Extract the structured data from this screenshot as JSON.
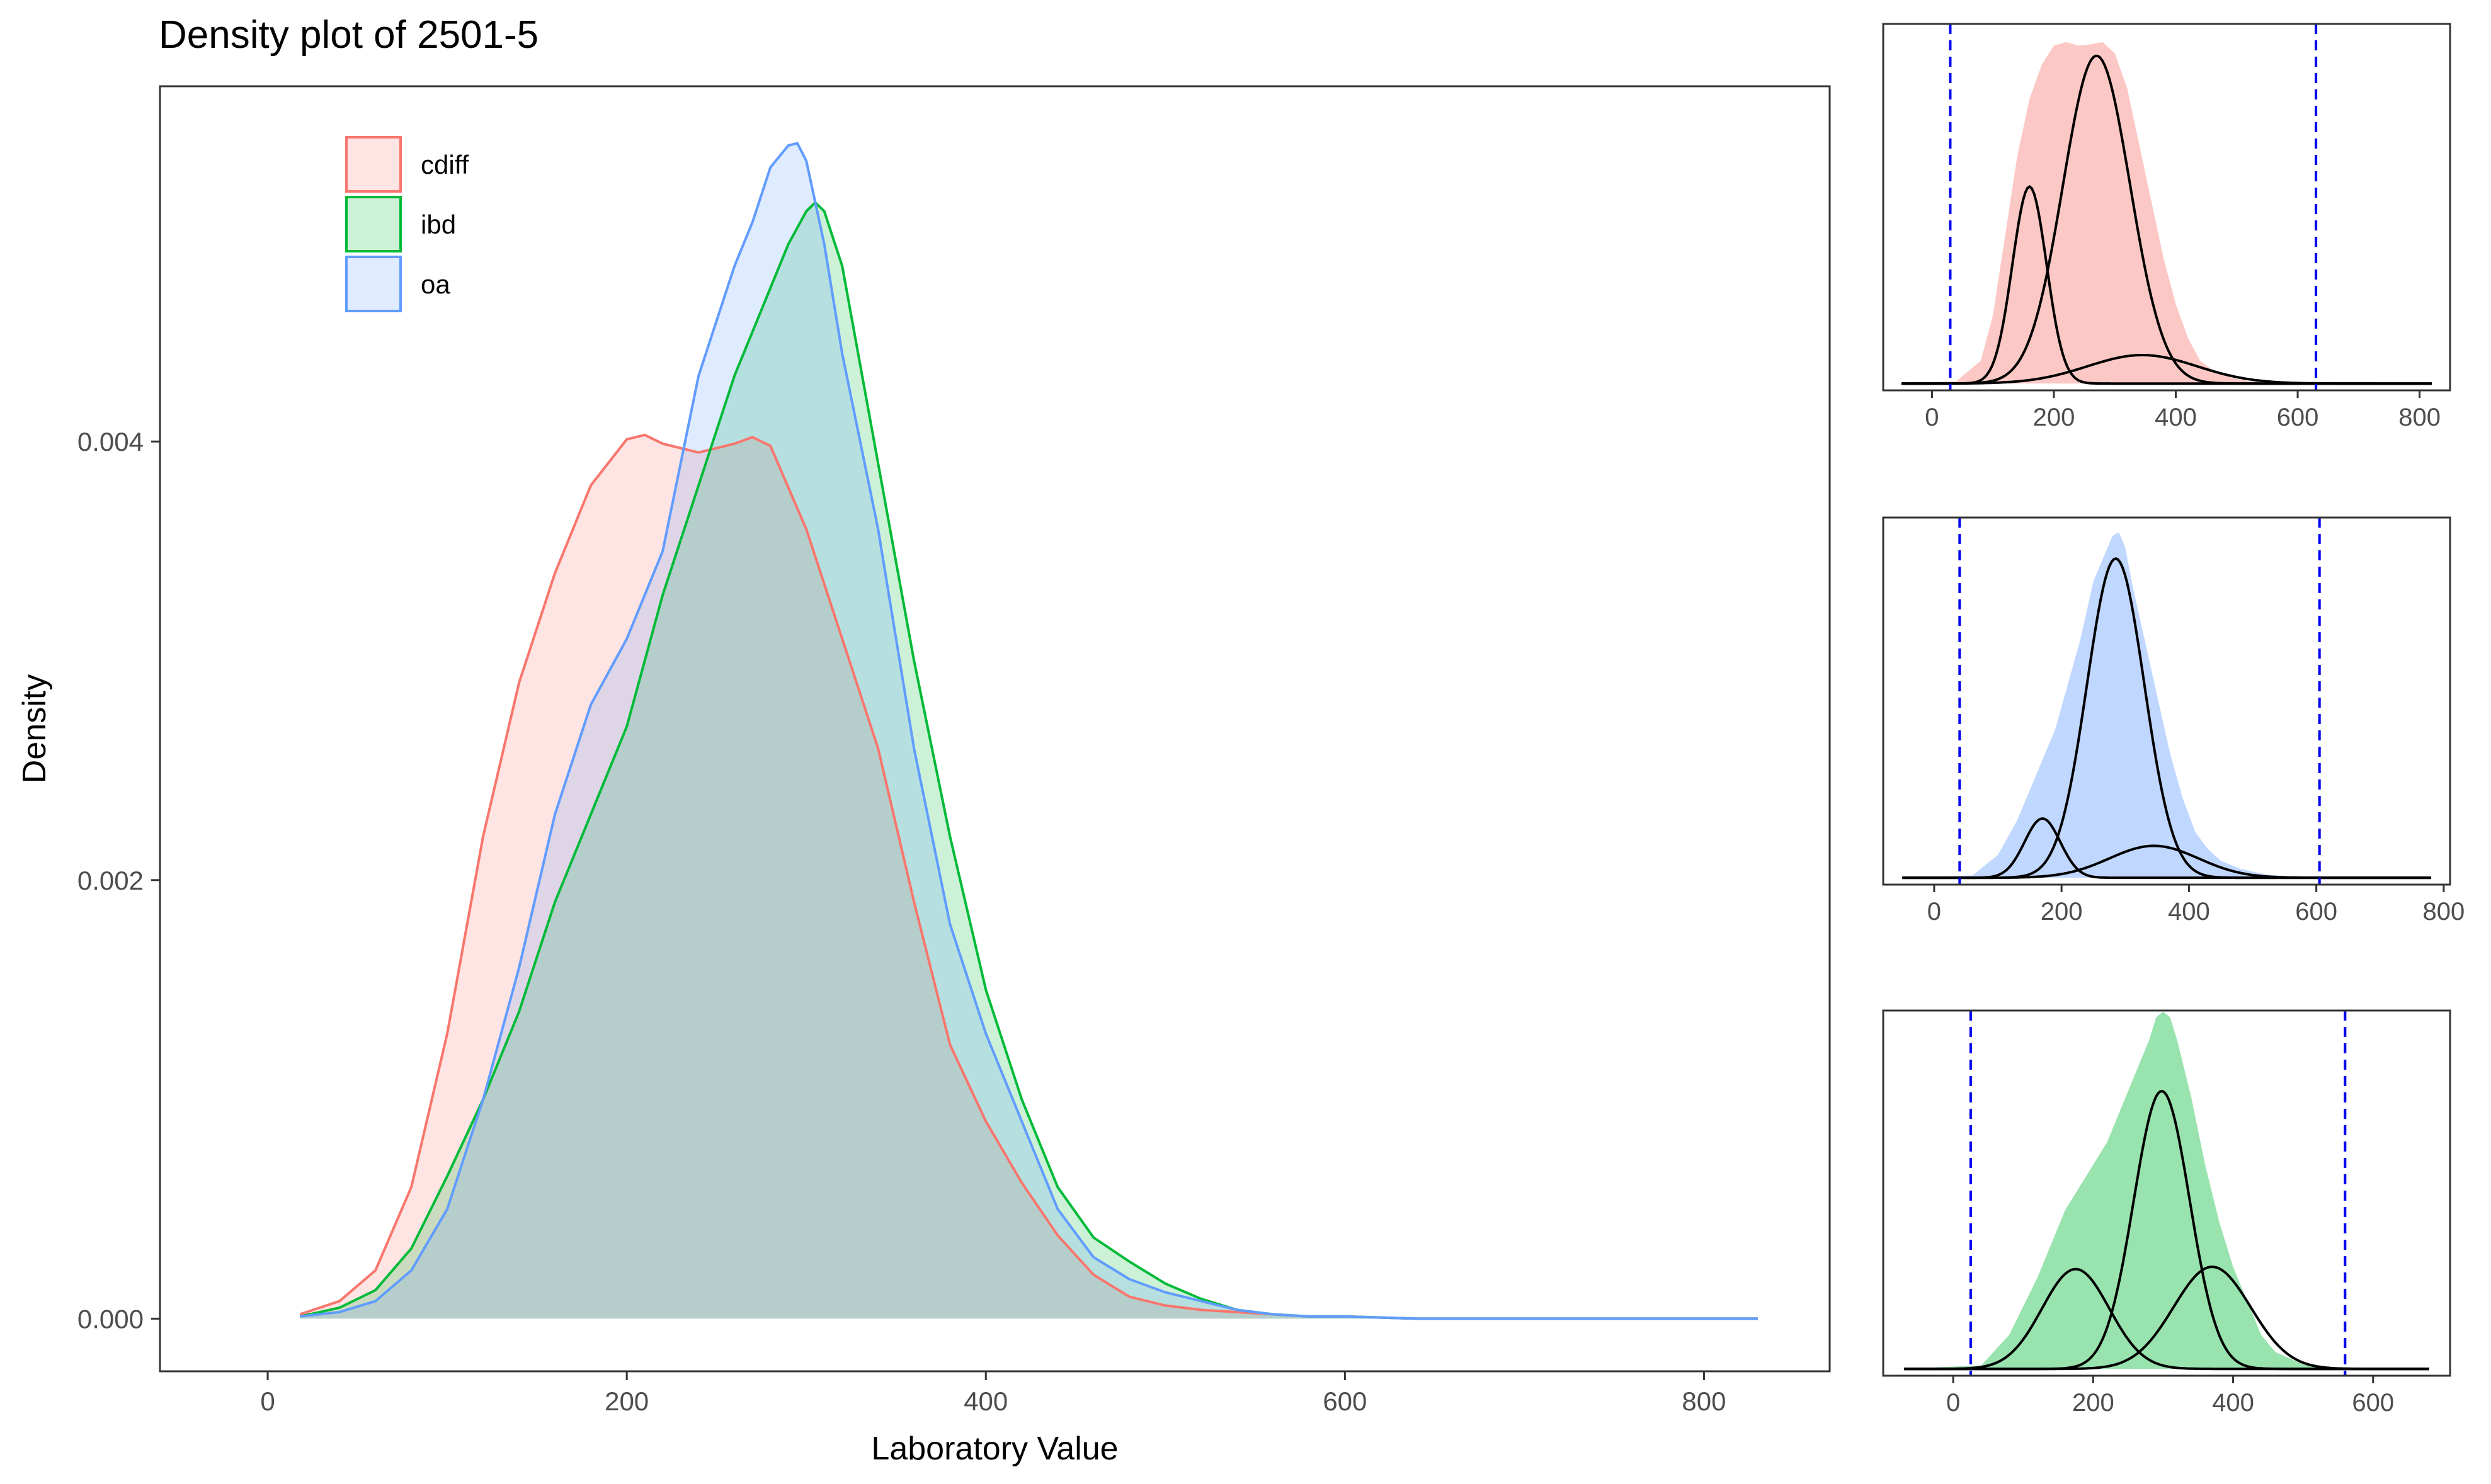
{
  "title": "Density plot of 2501-5",
  "main_chart": {
    "type": "area",
    "xlabel": "Laboratory Value",
    "ylabel": "Density",
    "xlim": [
      -60,
      870
    ],
    "ylim": [
      -0.00024,
      0.00562
    ],
    "x_ticks": [
      0,
      200,
      400,
      600,
      800
    ],
    "y_ticks": [
      0.0,
      0.002,
      0.004
    ],
    "y_tick_labels": [
      "0.000",
      "0.002",
      "0.004"
    ],
    "grid": false,
    "legend_position": "top-left",
    "series": [
      {
        "name": "cdiff",
        "color": "#F8766D",
        "x": [
          18,
          40,
          60,
          80,
          100,
          120,
          140,
          160,
          180,
          200,
          210,
          220,
          240,
          260,
          270,
          280,
          300,
          320,
          340,
          360,
          380,
          400,
          420,
          440,
          460,
          480,
          500,
          520,
          540,
          560,
          580,
          600,
          640,
          700,
          830
        ],
        "y": [
          2e-05,
          8e-05,
          0.00022,
          0.0006,
          0.0013,
          0.0022,
          0.0029,
          0.0034,
          0.0038,
          0.00401,
          0.00403,
          0.00399,
          0.00395,
          0.00399,
          0.00402,
          0.00398,
          0.0036,
          0.0031,
          0.0026,
          0.0019,
          0.00125,
          0.0009,
          0.00062,
          0.00038,
          0.0002,
          0.0001,
          6e-05,
          4e-05,
          3e-05,
          2e-05,
          1e-05,
          1e-05,
          0.0,
          0.0,
          0.0
        ]
      },
      {
        "name": "ibd",
        "color": "#00BA38",
        "x": [
          18,
          40,
          60,
          80,
          100,
          120,
          140,
          160,
          180,
          200,
          220,
          240,
          260,
          280,
          290,
          300,
          305,
          310,
          320,
          340,
          360,
          380,
          400,
          420,
          440,
          460,
          480,
          500,
          520,
          540,
          560,
          580,
          600,
          640,
          700,
          830
        ],
        "y": [
          1e-05,
          5e-05,
          0.00013,
          0.00032,
          0.00065,
          0.001,
          0.0014,
          0.0019,
          0.0023,
          0.0027,
          0.0033,
          0.0038,
          0.0043,
          0.0047,
          0.0049,
          0.00505,
          0.00509,
          0.00505,
          0.0048,
          0.0039,
          0.003,
          0.0022,
          0.0015,
          0.001,
          0.0006,
          0.00037,
          0.00026,
          0.00016,
          9e-05,
          4e-05,
          2e-05,
          1e-05,
          1e-05,
          0.0,
          0.0,
          0.0
        ]
      },
      {
        "name": "oa",
        "color": "#619CFF",
        "x": [
          18,
          40,
          60,
          80,
          100,
          120,
          140,
          160,
          180,
          200,
          220,
          240,
          260,
          270,
          280,
          290,
          295,
          300,
          310,
          320,
          340,
          360,
          380,
          400,
          420,
          440,
          460,
          480,
          500,
          520,
          540,
          560,
          580,
          600,
          640,
          700,
          830
        ],
        "y": [
          1e-05,
          3e-05,
          8e-05,
          0.00022,
          0.0005,
          0.001,
          0.0016,
          0.0023,
          0.0028,
          0.0031,
          0.0035,
          0.0043,
          0.0048,
          0.005,
          0.00525,
          0.00535,
          0.00536,
          0.00528,
          0.0049,
          0.0044,
          0.0036,
          0.0026,
          0.0018,
          0.0013,
          0.0009,
          0.0005,
          0.00028,
          0.00018,
          0.00012,
          8e-05,
          4e-05,
          2e-05,
          1e-05,
          1e-05,
          0.0,
          0.0,
          0.0
        ]
      }
    ]
  },
  "panels": [
    {
      "name": "cdiff-components",
      "fill": "#F8766D",
      "xlim": [
        -80,
        850
      ],
      "ylim": [
        -6e-05,
        0.00316
      ],
      "x_ticks": [
        0,
        200,
        400,
        600,
        800
      ],
      "cutoffs": [
        30,
        630
      ],
      "density": {
        "x": [
          -60,
          40,
          80,
          100,
          120,
          140,
          160,
          180,
          200,
          220,
          240,
          260,
          280,
          300,
          320,
          340,
          360,
          380,
          400,
          420,
          440,
          460,
          480,
          500,
          520,
          560,
          620,
          700,
          820
        ],
        "y": [
          0,
          2e-05,
          0.0002,
          0.0006,
          0.0013,
          0.002,
          0.0025,
          0.0028,
          0.00297,
          0.003,
          0.00297,
          0.00298,
          0.003,
          0.0029,
          0.0026,
          0.0021,
          0.0016,
          0.0011,
          0.0007,
          0.0004,
          0.0002,
          0.00012,
          7e-05,
          4e-05,
          2e-05,
          1e-05,
          0,
          0,
          0
        ]
      },
      "components": [
        {
          "mean": 160,
          "sd": 28,
          "peak": 0.00173
        },
        {
          "mean": 270,
          "sd": 55,
          "peak": 0.00288
        },
        {
          "mean": 345,
          "sd": 90,
          "peak": 0.00025
        }
      ]
    },
    {
      "name": "oa-components",
      "fill": "#619CFF",
      "xlim": [
        -80,
        810
      ],
      "ylim": [
        -6e-05,
        0.00316
      ],
      "x_ticks": [
        0,
        200,
        400,
        600,
        800
      ],
      "cutoffs": [
        40,
        605
      ],
      "density": {
        "x": [
          -60,
          60,
          100,
          130,
          160,
          190,
          210,
          230,
          250,
          265,
          280,
          290,
          300,
          310,
          330,
          350,
          370,
          390,
          410,
          430,
          450,
          480,
          520,
          560,
          620,
          700,
          780
        ],
        "y": [
          0,
          2e-05,
          0.0002,
          0.0005,
          0.0009,
          0.0013,
          0.0017,
          0.0021,
          0.0026,
          0.0028,
          0.003,
          0.00303,
          0.0029,
          0.0026,
          0.0021,
          0.0016,
          0.0011,
          0.0007,
          0.0004,
          0.00025,
          0.00015,
          8e-05,
          3e-05,
          1e-05,
          0,
          0,
          0
        ]
      },
      "components": [
        {
          "mean": 170,
          "sd": 28,
          "peak": 0.00052
        },
        {
          "mean": 285,
          "sd": 45,
          "peak": 0.0028
        },
        {
          "mean": 345,
          "sd": 70,
          "peak": 0.00028
        }
      ]
    },
    {
      "name": "ibd-components",
      "fill": "#00BA38",
      "xlim": [
        -100,
        710
      ],
      "ylim": [
        -6e-05,
        0.00316
      ],
      "x_ticks": [
        0,
        200,
        400,
        600
      ],
      "cutoffs": [
        25,
        560
      ],
      "density": {
        "x": [
          -80,
          40,
          80,
          120,
          160,
          200,
          220,
          240,
          260,
          280,
          290,
          300,
          310,
          320,
          340,
          360,
          380,
          400,
          420,
          440,
          460,
          500,
          540,
          600,
          680
        ],
        "y": [
          0,
          3e-05,
          0.0003,
          0.0008,
          0.0014,
          0.0018,
          0.002,
          0.0023,
          0.0026,
          0.0029,
          0.0031,
          0.00315,
          0.0031,
          0.0029,
          0.0024,
          0.0018,
          0.0013,
          0.0009,
          0.0006,
          0.0003,
          0.00015,
          4e-05,
          1e-05,
          0,
          0
        ]
      },
      "components": [
        {
          "mean": 175,
          "sd": 48,
          "peak": 0.00088
        },
        {
          "mean": 298,
          "sd": 40,
          "peak": 0.00245
        },
        {
          "mean": 370,
          "sd": 55,
          "peak": 0.0009
        }
      ]
    }
  ]
}
